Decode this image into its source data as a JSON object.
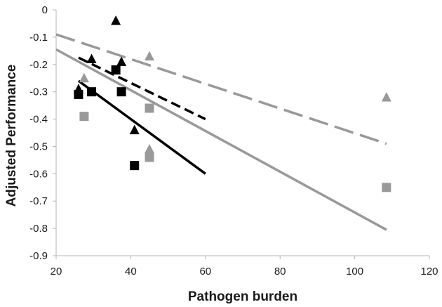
{
  "chart_data": {
    "type": "scatter",
    "xlabel": "Pathogen burden",
    "ylabel": "Adjusted Performance",
    "xlim": [
      20,
      120
    ],
    "ylim": [
      -0.9,
      0
    ],
    "xticks": [
      20,
      40,
      60,
      80,
      100,
      120
    ],
    "yticks": [
      0,
      -0.1,
      -0.2,
      -0.3,
      -0.4,
      -0.5,
      -0.6,
      -0.7,
      -0.8,
      -0.9
    ],
    "xtick_labels": [
      "20",
      "40",
      "60",
      "80",
      "100",
      "120"
    ],
    "ytick_labels": [
      "0",
      "-0.1",
      "-0.2",
      "-0.3",
      "-0.4",
      "-0.5",
      "-0.6",
      "-0.7",
      "-0.8",
      "-0.9"
    ],
    "grid": false,
    "legend": "none",
    "series": [
      {
        "marker": "triangle",
        "color": "#000000",
        "points": [
          [
            26,
            -0.29
          ],
          [
            29.5,
            -0.18
          ],
          [
            36,
            -0.04
          ],
          [
            37.5,
            -0.19
          ],
          [
            41,
            -0.44
          ]
        ]
      },
      {
        "marker": "square",
        "color": "#000000",
        "points": [
          [
            26,
            -0.31
          ],
          [
            29.5,
            -0.3
          ],
          [
            36,
            -0.22
          ],
          [
            37.5,
            -0.3
          ],
          [
            41,
            -0.57
          ]
        ]
      },
      {
        "marker": "triangle",
        "color": "#999999",
        "points": [
          [
            27.5,
            -0.25
          ],
          [
            45,
            -0.17
          ],
          [
            45,
            -0.51
          ],
          [
            108.5,
            -0.32
          ]
        ]
      },
      {
        "marker": "square",
        "color": "#999999",
        "points": [
          [
            27.5,
            -0.39
          ],
          [
            45,
            -0.36
          ],
          [
            45,
            -0.54
          ],
          [
            108.5,
            -0.65
          ]
        ]
      }
    ],
    "trendlines": [
      {
        "color": "#000000",
        "style": "dashed",
        "x": [
          26,
          60
        ],
        "y": [
          -0.175,
          -0.4
        ]
      },
      {
        "color": "#000000",
        "style": "solid",
        "x": [
          26,
          60
        ],
        "y": [
          -0.26,
          -0.6
        ]
      },
      {
        "color": "#999999",
        "style": "dashed",
        "x": [
          20,
          108.5
        ],
        "y": [
          -0.09,
          -0.49
        ]
      },
      {
        "color": "#999999",
        "style": "solid",
        "x": [
          20,
          108.5
        ],
        "y": [
          -0.145,
          -0.805
        ]
      }
    ]
  }
}
